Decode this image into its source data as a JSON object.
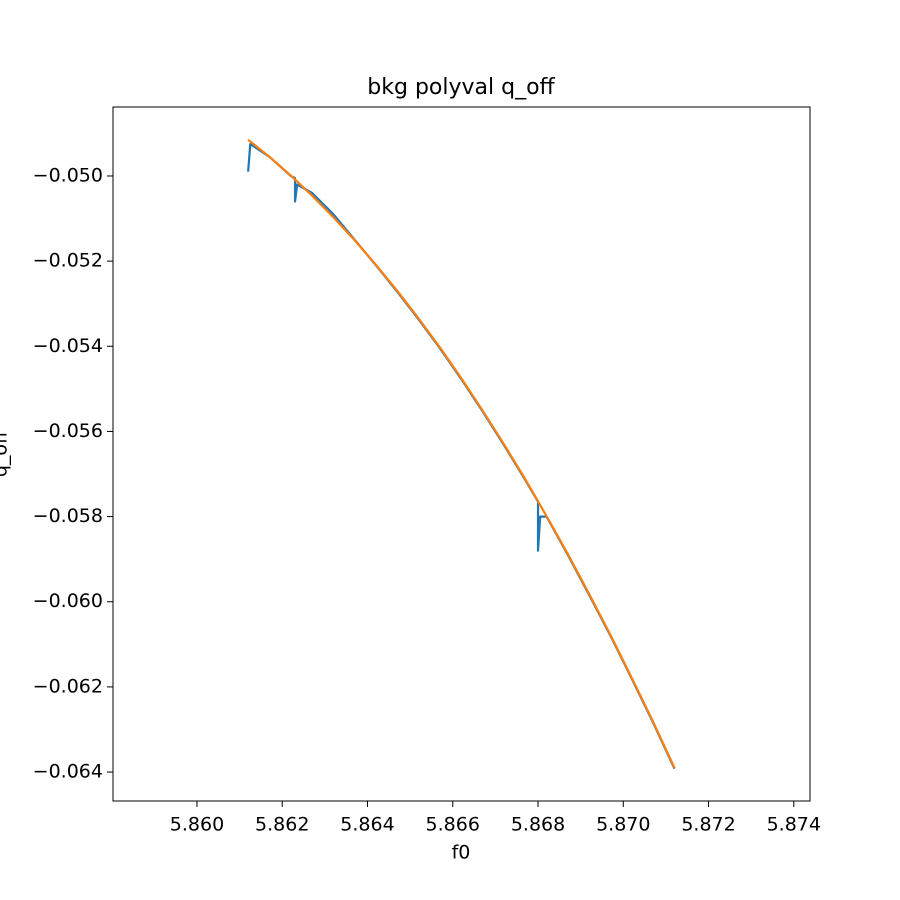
{
  "chart_data": {
    "type": "line",
    "title": "bkg polyval q_off",
    "x_label": "f0",
    "y_label": "q_off",
    "xlim": [
      5.85803,
      5.87438
    ],
    "ylim": [
      -0.06468,
      -0.04838
    ],
    "xticks": [
      {
        "value": 5.86,
        "label": "5.860"
      },
      {
        "value": 5.862,
        "label": "5.862"
      },
      {
        "value": 5.864,
        "label": "5.864"
      },
      {
        "value": 5.866,
        "label": "5.866"
      },
      {
        "value": 5.868,
        "label": "5.868"
      },
      {
        "value": 5.87,
        "label": "5.870"
      },
      {
        "value": 5.872,
        "label": "5.872"
      },
      {
        "value": 5.874,
        "label": "5.874"
      }
    ],
    "yticks": [
      {
        "value": -0.05,
        "label": "−0.050"
      },
      {
        "value": -0.052,
        "label": "−0.052"
      },
      {
        "value": -0.054,
        "label": "−0.054"
      },
      {
        "value": -0.056,
        "label": "−0.056"
      },
      {
        "value": -0.058,
        "label": "−0.058"
      },
      {
        "value": -0.06,
        "label": "−0.060"
      },
      {
        "value": -0.062,
        "label": "−0.062"
      },
      {
        "value": -0.064,
        "label": "−0.064"
      }
    ],
    "series": [
      {
        "color": "#1f77b4",
        "x": [
          5.8612,
          5.86125,
          5.8617,
          5.8622,
          5.8623,
          5.8623,
          5.86235,
          5.8627,
          5.8632,
          5.8637,
          5.8642,
          5.8647,
          5.8652,
          5.8657,
          5.8662,
          5.8667,
          5.8672,
          5.8677,
          5.868,
          5.868,
          5.86805,
          5.8682,
          5.8687,
          5.8692,
          5.8697,
          5.8702,
          5.8707,
          5.8712
        ],
        "values": [
          -0.0499,
          -0.04925,
          -0.04955,
          -0.05,
          -0.05005,
          -0.0506,
          -0.0502,
          -0.0504,
          -0.0509,
          -0.0515,
          -0.0521,
          -0.05272,
          -0.05337,
          -0.05405,
          -0.05477,
          -0.05553,
          -0.05632,
          -0.05714,
          -0.05765,
          -0.0588,
          -0.058,
          -0.058,
          -0.0589,
          -0.05984,
          -0.0608,
          -0.06181,
          -0.06284,
          -0.06392
        ]
      },
      {
        "color": "#ff7f0e",
        "x": [
          5.8612,
          5.8617,
          5.8622,
          5.8627,
          5.8632,
          5.8637,
          5.8642,
          5.8647,
          5.8652,
          5.8657,
          5.8662,
          5.8667,
          5.8672,
          5.8677,
          5.8682,
          5.8687,
          5.8692,
          5.8697,
          5.8702,
          5.8707,
          5.8712
        ],
        "values": [
          -0.04915,
          -0.04955,
          -0.04999,
          -0.05046,
          -0.05097,
          -0.05151,
          -0.05209,
          -0.0527,
          -0.05335,
          -0.05403,
          -0.05475,
          -0.05551,
          -0.0563,
          -0.05712,
          -0.05799,
          -0.05888,
          -0.05982,
          -0.06078,
          -0.06179,
          -0.06282,
          -0.0639
        ]
      }
    ]
  }
}
